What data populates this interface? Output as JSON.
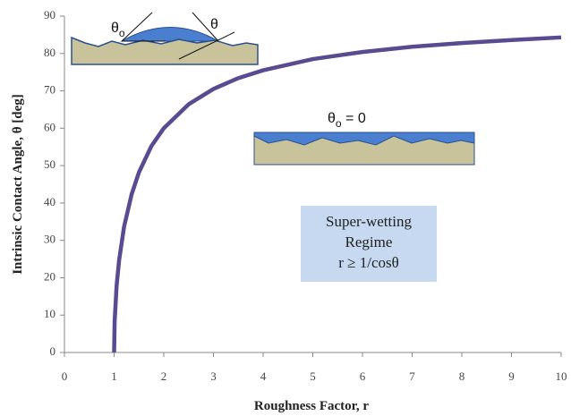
{
  "chart_data": {
    "type": "line",
    "x_label": "Roughness Factor, r",
    "y_label": "Intrinsic Contact Angle, θ [deg]",
    "x": [
      1,
      1.01,
      1.05,
      1.1,
      1.2,
      1.35,
      1.5,
      1.75,
      2,
      2.5,
      3,
      3.5,
      4,
      5,
      6,
      7,
      8,
      9,
      10
    ],
    "values": [
      0,
      8.1,
      17.8,
      24.6,
      33.6,
      42.2,
      48.2,
      55.2,
      60,
      66.4,
      70.5,
      73.4,
      75.5,
      78.5,
      80.4,
      81.8,
      82.8,
      83.6,
      84.3
    ],
    "color": "#5a4a90",
    "xlim": [
      0,
      10
    ],
    "xticks": [
      0,
      1,
      2,
      3,
      4,
      5,
      6,
      7,
      8,
      9,
      10
    ],
    "ylim": [
      0,
      90
    ],
    "yticks": [
      0,
      10,
      20,
      30,
      40,
      50,
      60,
      70,
      80,
      90
    ],
    "annotations": {
      "left_inset": {
        "theta_o": "θ",
        "sub_o": "o",
        "theta": "θ"
      },
      "middle_inset": {
        "theta": "θ",
        "sub": "o",
        "eq": " = 0"
      },
      "regime_box": [
        "Super-wetting",
        "Regime",
        "r ≥ 1/cosθ"
      ]
    }
  }
}
